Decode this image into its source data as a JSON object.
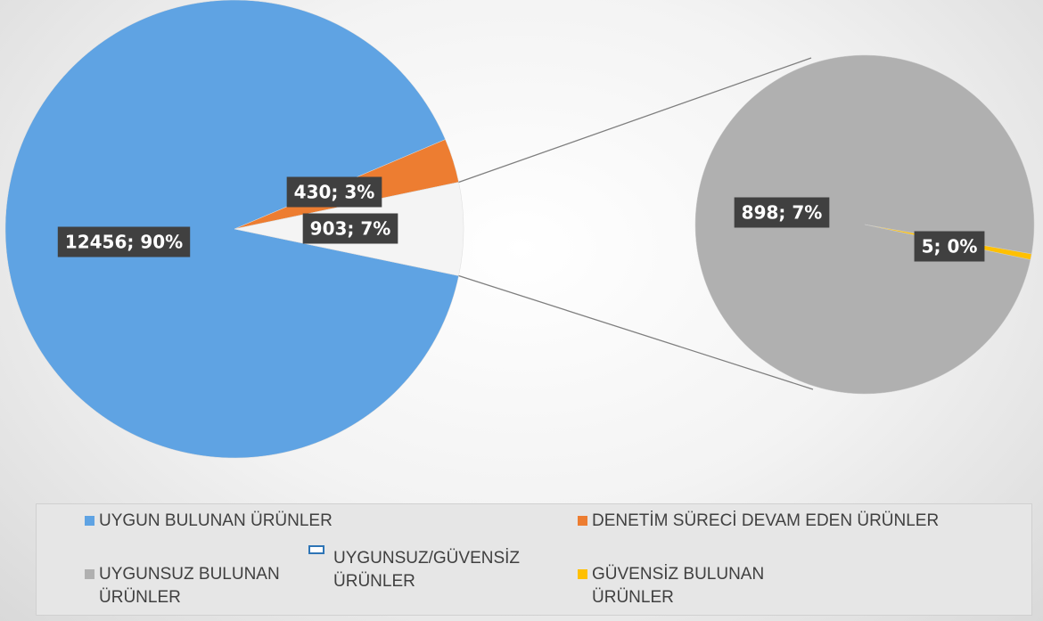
{
  "chart_data": {
    "type": "pie",
    "categories": [
      "UYGUN BULUNAN ÜRÜNLER",
      "DENETİM SÜRECİ DEVAM EDEN ÜRÜNLER",
      "UYGUNSUZ/GÜVENSİZ ÜRÜNLER"
    ],
    "values": [
      12456,
      430,
      903
    ],
    "value_labels": [
      "12456; 90%",
      "430; 3%",
      "903; 7%"
    ],
    "colors": [
      "#5fa3e3",
      "#ed7d31",
      "#f4f4f4"
    ],
    "secondary": {
      "type": "pie",
      "categories": [
        "UYGUNSUZ BULUNAN ÜRÜNLER",
        "GÜVENSİZ BULUNAN ÜRÜNLER"
      ],
      "values": [
        898,
        5
      ],
      "value_labels": [
        "898; 7%",
        "5; 0%"
      ],
      "colors": [
        "#b0b0b0",
        "#ffc000"
      ]
    },
    "legend": "bottom"
  }
}
